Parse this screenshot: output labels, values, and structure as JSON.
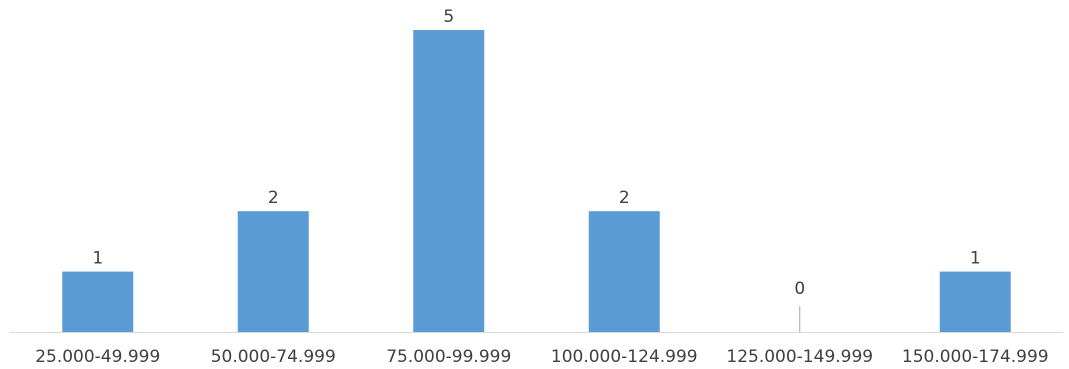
{
  "chart_data": {
    "type": "bar",
    "title": "",
    "xlabel": "",
    "ylabel": "",
    "categories": [
      "25.000-49.999",
      "50.000-74.999",
      "75.000-99.999",
      "100.000-124.999",
      "125.000-149.999",
      "150.000-174.999"
    ],
    "values": [
      1,
      2,
      5,
      2,
      0,
      1
    ],
    "data_labels": [
      "1",
      "2",
      "5",
      "2",
      "0",
      "1"
    ],
    "ylim": [
      0,
      5
    ],
    "grid": false,
    "legend": "none",
    "colors": {
      "bar": "#5B9BD5",
      "axis": "#D9D9D9",
      "zero_marker": "#A6A6A6",
      "text": "#404040"
    }
  }
}
